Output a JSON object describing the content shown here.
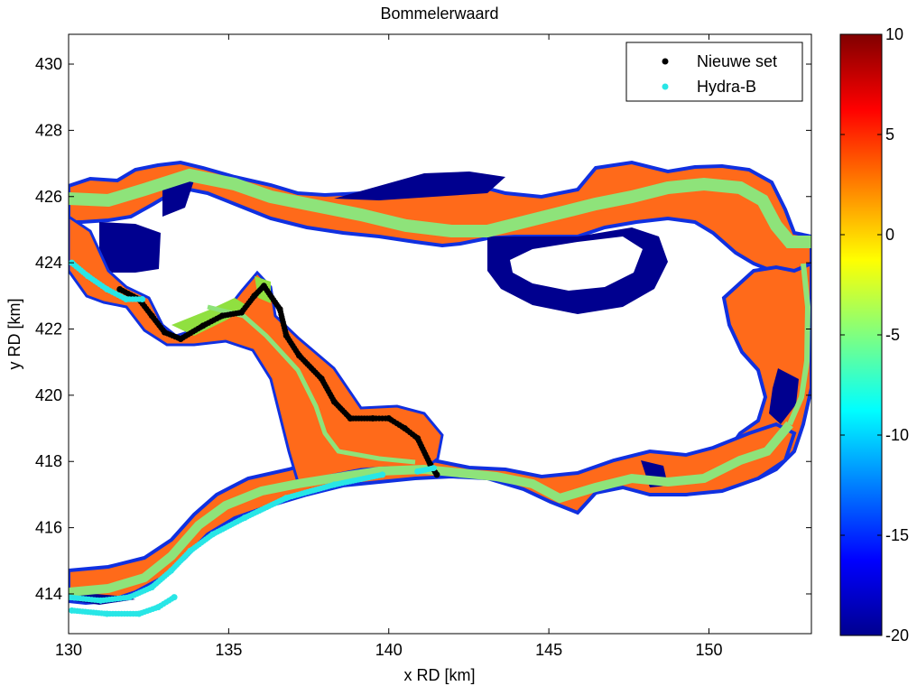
{
  "chart_data": {
    "type": "heatmap",
    "title": "Bommelerwaard",
    "xlabel": "x RD [km]",
    "ylabel": "y RD [km]",
    "xlim": [
      130,
      153.2
    ],
    "ylim": [
      412.8,
      430.9
    ],
    "xticks": [
      130,
      135,
      140,
      145,
      150
    ],
    "yticks": [
      414,
      416,
      418,
      420,
      422,
      424,
      426,
      428,
      430
    ],
    "colorbar": {
      "colormap": "jet",
      "clim": [
        -20,
        10
      ],
      "ticks": [
        10,
        5,
        0,
        -5,
        -10,
        -15,
        -20
      ]
    },
    "legend": {
      "position": "top-right",
      "entries": [
        {
          "label": "Nieuwe set",
          "color": "#000000",
          "marker": "dot"
        },
        {
          "label": "Hydra-B",
          "color": "#28e6e6",
          "marker": "dot"
        }
      ]
    },
    "series": [
      {
        "name": "Nieuwe set",
        "color": "#000000",
        "points": [
          [
            131.6,
            423.2
          ],
          [
            132.2,
            422.9
          ],
          [
            132.6,
            422.4
          ],
          [
            133,
            421.9
          ],
          [
            133.5,
            421.7
          ],
          [
            134.2,
            422.1
          ],
          [
            134.8,
            422.4
          ],
          [
            135.4,
            422.5
          ],
          [
            135.8,
            423.0
          ],
          [
            136.1,
            423.3
          ],
          [
            136.6,
            422.6
          ],
          [
            136.8,
            421.8
          ],
          [
            137.2,
            421.2
          ],
          [
            137.9,
            420.5
          ],
          [
            138.3,
            419.8
          ],
          [
            138.8,
            419.3
          ],
          [
            139.5,
            419.3
          ],
          [
            140,
            419.3
          ],
          [
            140.5,
            419.0
          ],
          [
            140.9,
            418.7
          ],
          [
            141.3,
            417.9
          ],
          [
            141.5,
            417.6
          ]
        ]
      },
      {
        "name": "Hydra-B",
        "color": "#28e6e6",
        "points": [
          [
            130,
            413.9
          ],
          [
            131,
            413.8
          ],
          [
            131.9,
            413.9
          ],
          [
            132.6,
            414.2
          ],
          [
            133.2,
            414.7
          ],
          [
            133.8,
            415.3
          ],
          [
            134.5,
            415.8
          ],
          [
            135.5,
            416.3
          ],
          [
            136.8,
            416.9
          ],
          [
            138.3,
            417.3
          ],
          [
            139.8,
            417.6
          ]
        ]
      },
      {
        "name": "Hydra-B",
        "color": "#28e6e6",
        "points": [
          [
            130.1,
            424.0
          ],
          [
            130.6,
            423.6
          ],
          [
            131.2,
            423.2
          ],
          [
            131.8,
            422.9
          ],
          [
            132.3,
            422.9
          ]
        ]
      },
      {
        "name": "Hydra-B",
        "color": "#28e6e6",
        "points": [
          [
            130.1,
            413.5
          ],
          [
            131.2,
            413.4
          ],
          [
            132.2,
            413.4
          ],
          [
            132.8,
            413.6
          ],
          [
            133.3,
            413.9
          ]
        ]
      },
      {
        "name": "Hydra-B",
        "color": "#28e6e6",
        "points": [
          [
            140.9,
            417.7
          ],
          [
            141.4,
            417.8
          ]
        ]
      }
    ]
  }
}
